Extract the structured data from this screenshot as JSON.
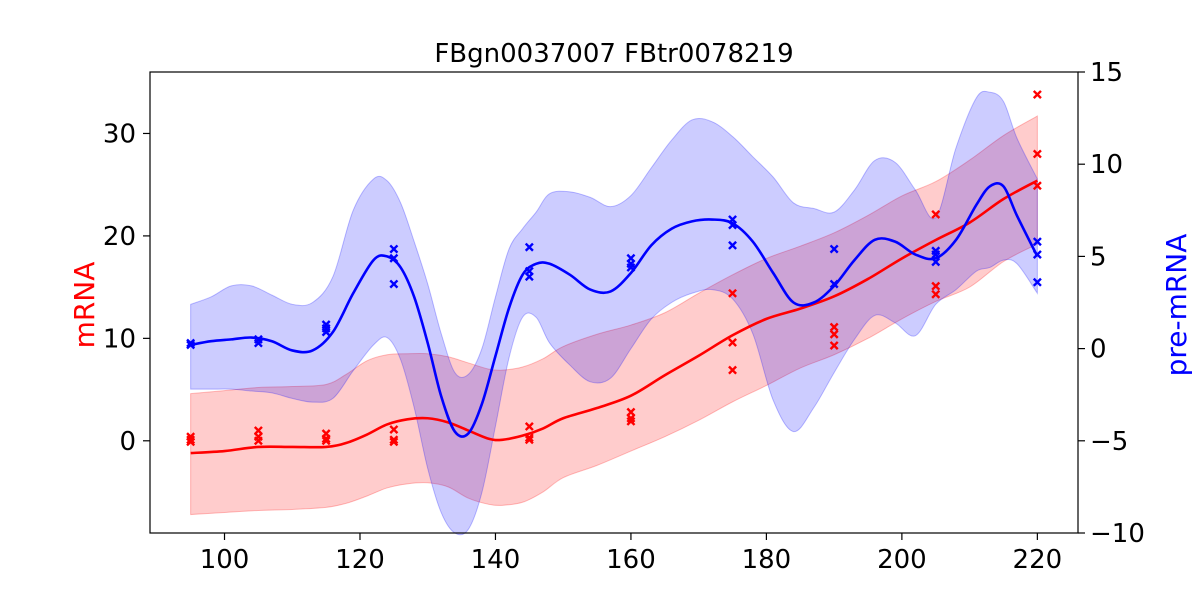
{
  "chart_data": {
    "type": "line",
    "title": "FBgn0037007 FBtr0078219",
    "xlabel": "",
    "x_ticks": [
      100,
      120,
      140,
      160,
      180,
      200,
      220
    ],
    "xlim": [
      89,
      226
    ],
    "left_axis": {
      "label": "mRNA",
      "color": "#ff0000",
      "ylim": [
        -9,
        36
      ],
      "ticks": [
        0,
        10,
        20,
        30
      ]
    },
    "right_axis": {
      "label": "pre-mRNA",
      "color": "#0000ff",
      "ylim": [
        -10,
        15
      ],
      "ticks": [
        -10,
        -5,
        0,
        5,
        10,
        15
      ]
    },
    "series": [
      {
        "axis": "left",
        "color": "#ff0000",
        "mean_curve": {
          "x": [
            95,
            100,
            105,
            110,
            115,
            118,
            121,
            124,
            127,
            130,
            133,
            136,
            139,
            141,
            144,
            147,
            150,
            155,
            160,
            165,
            170,
            175,
            180,
            185,
            190,
            195,
            200,
            205,
            210,
            215,
            220
          ],
          "y": [
            -1.2,
            -1,
            -0.6,
            -0.6,
            -0.6,
            -0.2,
            0.6,
            1.6,
            2.1,
            2.2,
            1.8,
            1,
            0.2,
            0.1,
            0.5,
            1.2,
            2.2,
            3.2,
            4.4,
            6.4,
            8.3,
            10.3,
            11.9,
            12.9,
            14.1,
            15.8,
            17.8,
            19.6,
            21.3,
            23.6,
            25.4
          ]
        },
        "band": {
          "lower": [
            -7.2,
            -7,
            -6.8,
            -6.7,
            -6.5,
            -6.1,
            -5.4,
            -4.6,
            -4.2,
            -4.1,
            -4.5,
            -5.6,
            -6.2,
            -6.3,
            -6,
            -5,
            -3.6,
            -2.4,
            -1,
            0.4,
            2,
            3.8,
            5.4,
            7.1,
            8.4,
            10,
            11.9,
            13.6,
            15,
            17.5,
            19.2
          ],
          "upper": [
            4.6,
            4.9,
            5.2,
            5.3,
            5.5,
            6.5,
            7.8,
            8.4,
            8.5,
            8.5,
            8.2,
            7.6,
            7,
            6.9,
            7.2,
            8,
            9.2,
            10.4,
            11.3,
            12.5,
            14.4,
            16.2,
            17.8,
            19,
            20.3,
            22,
            23.9,
            25.3,
            27.4,
            29.8,
            31.7
          ]
        },
        "observations": {
          "x": [
            95,
            95,
            95,
            105,
            105,
            105,
            115,
            115,
            115,
            125,
            125,
            125,
            145,
            145,
            145,
            160,
            160,
            160,
            175,
            175,
            175,
            190,
            190,
            190,
            205,
            205,
            205,
            220,
            220,
            220
          ],
          "y": [
            0.4,
            0.1,
            -0.1,
            1,
            0.4,
            0,
            0.7,
            0.2,
            0,
            1.1,
            0.1,
            -0.1,
            1.4,
            0.3,
            0.1,
            2.8,
            2.2,
            1.9,
            14.4,
            9.6,
            6.9,
            11.1,
            10.4,
            9.3,
            22.1,
            15.1,
            14.3,
            33.8,
            28,
            24.9
          ]
        }
      },
      {
        "axis": "right",
        "color": "#0000ff",
        "mean_curve": {
          "x": [
            95,
            98,
            101,
            104,
            107,
            110,
            113,
            116,
            119,
            122,
            124,
            126,
            128,
            130,
            132,
            134,
            136,
            138,
            140,
            142,
            144,
            146,
            148,
            151,
            154,
            157,
            160,
            163,
            166,
            169,
            172,
            175,
            178,
            181,
            184,
            187,
            190,
            193,
            196,
            199,
            202,
            205,
            208,
            211,
            213,
            215,
            217,
            220
          ],
          "y": [
            0.2,
            0.4,
            0.5,
            0.6,
            0.4,
            -0.1,
            -0.1,
            0.9,
            3,
            4.8,
            5,
            4.4,
            2.8,
            0.3,
            -2.6,
            -4.5,
            -4.6,
            -3,
            -0.4,
            2.2,
            4,
            4.6,
            4.6,
            4,
            3.2,
            3.1,
            4.1,
            5.6,
            6.5,
            6.9,
            7,
            6.8,
            5.8,
            4.1,
            2.5,
            2.5,
            3.4,
            4.8,
            5.9,
            5.8,
            5.1,
            4.9,
            5.9,
            7.8,
            8.8,
            8.8,
            7.2,
            5
          ]
        },
        "band": {
          "lower": [
            -2.2,
            -2.2,
            -2.2,
            -2.3,
            -2.4,
            -2.7,
            -2.9,
            -2.7,
            -1.2,
            0.2,
            0.6,
            -0.6,
            -3.2,
            -6.5,
            -8.9,
            -10,
            -9.8,
            -7.8,
            -4.2,
            -0.5,
            1.7,
            1.7,
            0.3,
            -0.9,
            -1.8,
            -1.6,
            0,
            1.6,
            2.5,
            3,
            3.2,
            2.7,
            0.8,
            -2.8,
            -4.5,
            -3.2,
            -1.3,
            0.5,
            1.8,
            1.4,
            0.7,
            2.4,
            3.2,
            4.2,
            4.4,
            4.8,
            4.6,
            3
          ],
          "upper": [
            2.4,
            2.8,
            3.4,
            3.4,
            2.9,
            2.4,
            2.5,
            3.9,
            7.5,
            9.2,
            9.1,
            7.9,
            5.8,
            3.5,
            0.8,
            -1.3,
            -1.4,
            0,
            2.8,
            5.4,
            6.5,
            7.4,
            8.4,
            8.5,
            8.2,
            7.7,
            8.3,
            9.8,
            11.3,
            12.4,
            12.3,
            11.5,
            10.4,
            9.3,
            7.9,
            7.6,
            7.4,
            8.6,
            10.2,
            10.1,
            8.6,
            7.1,
            10.9,
            13.6,
            13.9,
            13.4,
            11.4,
            9.2
          ]
        },
        "observations": {
          "x": [
            95,
            95,
            105,
            105,
            115,
            115,
            115,
            125,
            125,
            125,
            145,
            145,
            145,
            160,
            160,
            160,
            175,
            175,
            175,
            190,
            190,
            205,
            205,
            205,
            220,
            220,
            220
          ],
          "y": [
            0.2,
            0.3,
            0.5,
            0.3,
            1.3,
            1.1,
            0.9,
            5.4,
            4.9,
            3.5,
            5.5,
            4.2,
            3.9,
            4.9,
            4.6,
            4.4,
            7,
            6.7,
            5.6,
            5.4,
            3.5,
            5.3,
            5.1,
            4.7,
            5.8,
            5.1,
            3.6
          ]
        }
      }
    ]
  }
}
